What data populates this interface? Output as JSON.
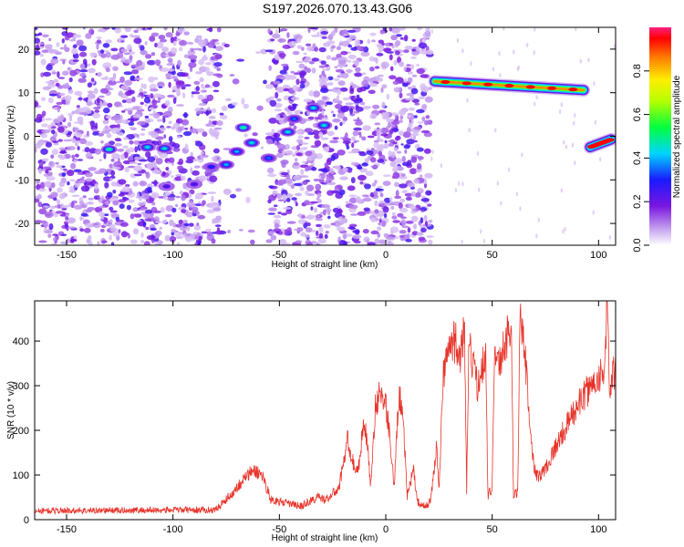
{
  "title": "S197.2026.070.13.43.G06",
  "chart_data": [
    {
      "type": "heatmap",
      "xlabel": "Height of straight line (km)",
      "ylabel": "Frequency (Hz)",
      "xlim": [
        -165,
        108
      ],
      "ylim": [
        -25,
        25
      ],
      "xticks": [
        -150,
        -100,
        -50,
        0,
        50,
        100
      ],
      "yticks": [
        -20,
        -10,
        0,
        10,
        20
      ],
      "colorbar": {
        "label": "Normalized spectral amplitude",
        "range": [
          0,
          1
        ],
        "ticks": [
          0.0,
          0.2,
          0.4,
          0.6,
          0.8
        ]
      },
      "blank_column_km": [
        -78,
        -55
      ],
      "noise_end_km": 21,
      "features": [
        {
          "name": "blob",
          "x": -130,
          "y": -3,
          "amp": 0.5
        },
        {
          "name": "blob",
          "x": -112,
          "y": -2.5,
          "amp": 0.45
        },
        {
          "name": "blob",
          "x": -104,
          "y": -2.8,
          "amp": 0.45
        },
        {
          "name": "blob",
          "x": -103,
          "y": -11.5,
          "amp": 0.25
        },
        {
          "name": "blob",
          "x": -90,
          "y": -11,
          "amp": 0.25
        },
        {
          "name": "blob",
          "x": -82,
          "y": -7,
          "amp": 0.3
        },
        {
          "name": "blob",
          "x": -75,
          "y": -6.5,
          "amp": 0.4
        },
        {
          "name": "blob",
          "x": -70,
          "y": -3.5,
          "amp": 0.4
        },
        {
          "name": "blob",
          "x": -67,
          "y": 2,
          "amp": 0.5
        },
        {
          "name": "blob",
          "x": -63,
          "y": -1.5,
          "amp": 0.45
        },
        {
          "name": "blob",
          "x": -55,
          "y": -5,
          "amp": 0.35
        },
        {
          "name": "blob",
          "x": -46,
          "y": 1,
          "amp": 0.45
        },
        {
          "name": "blob",
          "x": -43,
          "y": 4,
          "amp": 0.35
        },
        {
          "name": "blob",
          "x": -34,
          "y": 6.5,
          "amp": 0.45
        },
        {
          "name": "blob",
          "x": -29,
          "y": 2.5,
          "amp": 0.45
        },
        {
          "name": "line",
          "x0": 23,
          "x1": 93,
          "y0": 12.6,
          "y1": 10.6,
          "amp": 0.85
        },
        {
          "name": "line",
          "x0": 96,
          "x1": 106,
          "y0": -2.5,
          "y1": -0.7,
          "amp": 0.55
        }
      ]
    },
    {
      "type": "line",
      "xlabel": "Height of straight line (km)",
      "ylabel": "SNR (10 * v/v)",
      "xlim": [
        -165,
        108
      ],
      "ylim": [
        0,
        490
      ],
      "xticks": [
        -150,
        -100,
        -50,
        0,
        50,
        100
      ],
      "yticks": [
        0,
        100,
        200,
        300,
        400
      ],
      "color": "#e8332a",
      "series_anchors": [
        [
          -165,
          20
        ],
        [
          -80,
          22
        ],
        [
          -72,
          60
        ],
        [
          -66,
          95
        ],
        [
          -62,
          110
        ],
        [
          -58,
          100
        ],
        [
          -54,
          45
        ],
        [
          -40,
          30
        ],
        [
          -32,
          50
        ],
        [
          -28,
          45
        ],
        [
          -22,
          70
        ],
        [
          -18,
          180
        ],
        [
          -15,
          120
        ],
        [
          -13,
          110
        ],
        [
          -10,
          230
        ],
        [
          -7,
          75
        ],
        [
          -5,
          250
        ],
        [
          -2,
          290
        ],
        [
          1,
          230
        ],
        [
          4,
          75
        ],
        [
          6,
          270
        ],
        [
          8,
          260
        ],
        [
          10,
          50
        ],
        [
          13,
          110
        ],
        [
          15,
          40
        ],
        [
          18,
          30
        ],
        [
          21,
          40
        ],
        [
          24,
          170
        ],
        [
          25,
          55
        ],
        [
          27,
          330
        ],
        [
          30,
          390
        ],
        [
          33,
          400
        ],
        [
          35,
          360
        ],
        [
          37,
          430
        ],
        [
          38,
          60
        ],
        [
          39,
          390
        ],
        [
          43,
          300
        ],
        [
          47,
          380
        ],
        [
          48,
          55
        ],
        [
          50,
          70
        ],
        [
          51,
          380
        ],
        [
          53,
          345
        ],
        [
          57,
          410
        ],
        [
          59,
          440
        ],
        [
          60,
          55
        ],
        [
          62,
          60
        ],
        [
          63,
          430
        ],
        [
          64,
          440
        ],
        [
          66,
          330
        ],
        [
          68,
          200
        ],
        [
          70,
          110
        ],
        [
          72,
          95
        ],
        [
          75,
          115
        ],
        [
          80,
          165
        ],
        [
          85,
          210
        ],
        [
          90,
          255
        ],
        [
          95,
          290
        ],
        [
          100,
          320
        ],
        [
          103,
          345
        ],
        [
          104,
          470
        ],
        [
          104.5,
          440
        ],
        [
          105,
          250
        ],
        [
          106,
          320
        ],
        [
          108,
          330
        ]
      ]
    }
  ]
}
